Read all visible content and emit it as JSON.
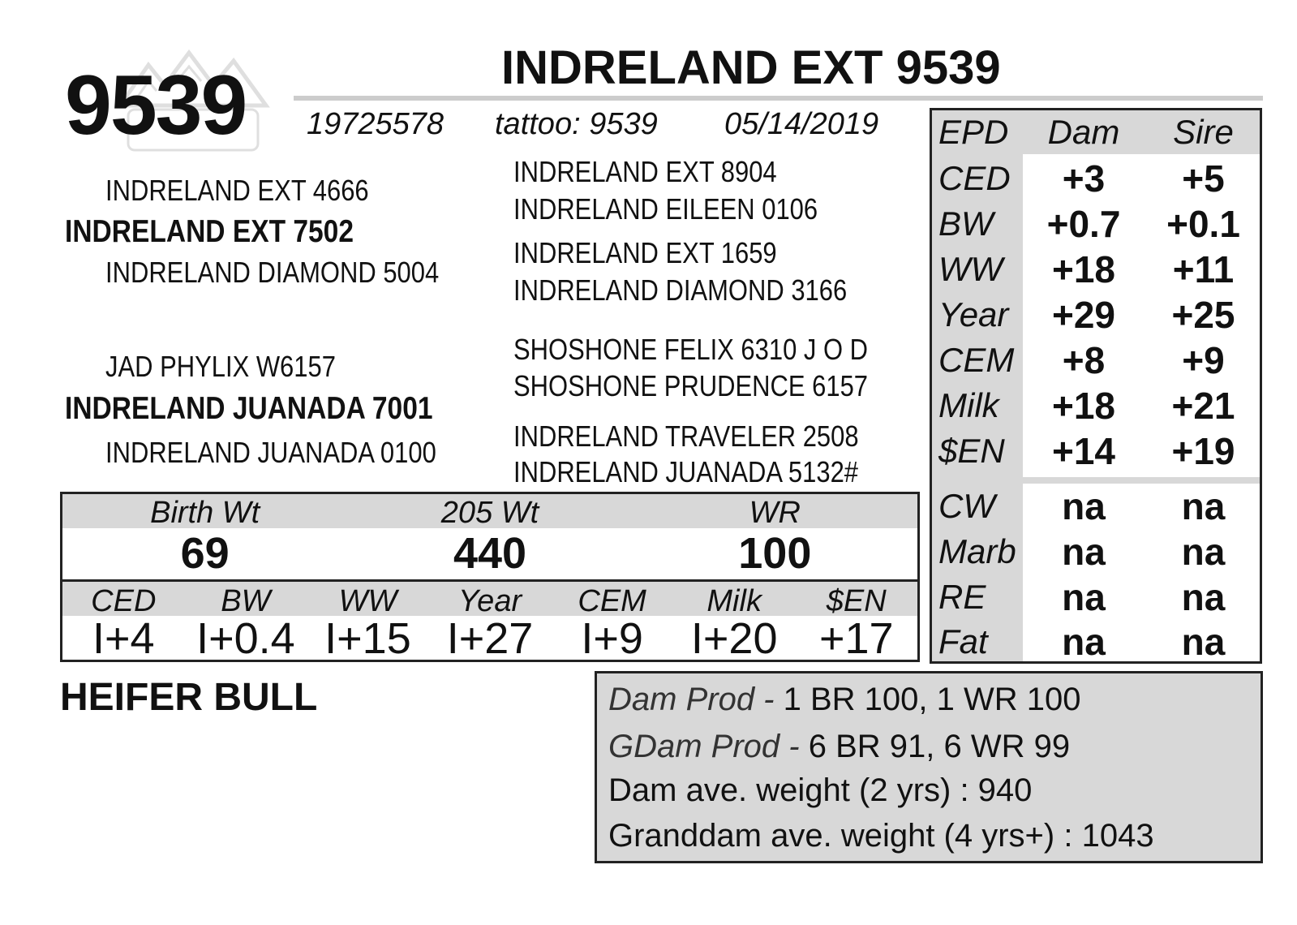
{
  "header": {
    "lot_number": "9539",
    "animal_name": "INDRELAND EXT 9539",
    "registration": "19725578",
    "tattoo": "tattoo: 9539",
    "birth_date": "05/14/2019"
  },
  "pedigree": {
    "sire": "INDRELAND EXT 7502",
    "sire_sire": "INDRELAND EXT 4666",
    "sire_dam": "INDRELAND DIAMOND 5004",
    "dam": "INDRELAND JUANADA 7001",
    "dam_sire": "JAD PHYLIX W6157",
    "dam_dam": "INDRELAND JUANADA 0100",
    "gg": [
      "INDRELAND EXT 8904",
      "INDRELAND EILEEN 0106",
      "INDRELAND EXT 1659",
      "INDRELAND DIAMOND 3166",
      "SHOSHONE FELIX 6310 J O D",
      "SHOSHONE PRUDENCE 6157",
      "INDRELAND TRAVELER 2508",
      "INDRELAND JUANADA 5132#"
    ]
  },
  "performance": {
    "headers": [
      "Birth Wt",
      "205 Wt",
      "WR"
    ],
    "values": [
      "69",
      "440",
      "100"
    ],
    "epd_headers": [
      "CED",
      "BW",
      "WW",
      "Year",
      "CEM",
      "Milk",
      "$EN"
    ],
    "epd_values": [
      "I+4",
      "I+0.4",
      "I+15",
      "I+27",
      "I+9",
      "I+20",
      "+17"
    ]
  },
  "epd_table": {
    "headers": [
      "EPD",
      "Dam",
      "Sire"
    ],
    "rows": [
      {
        "label": "CED",
        "dam": "+3",
        "sire": "+5"
      },
      {
        "label": "BW",
        "dam": "+0.7",
        "sire": "+0.1"
      },
      {
        "label": "WW",
        "dam": "+18",
        "sire": "+11"
      },
      {
        "label": "Year",
        "dam": "+29",
        "sire": "+25"
      },
      {
        "label": "CEM",
        "dam": "+8",
        "sire": "+9"
      },
      {
        "label": "Milk",
        "dam": "+18",
        "sire": "+21"
      },
      {
        "label": "$EN",
        "dam": "+14",
        "sire": "+19"
      },
      {
        "label": "CW",
        "dam": "na",
        "sire": "na"
      },
      {
        "label": "Marb",
        "dam": "na",
        "sire": "na"
      },
      {
        "label": "RE",
        "dam": "na",
        "sire": "na"
      },
      {
        "label": "Fat",
        "dam": "na",
        "sire": "na"
      }
    ]
  },
  "remarks": "HEIFER BULL",
  "production": {
    "dam_prod_label": "Dam Prod -",
    "dam_prod_value": "1 BR 100, 1 WR 100",
    "gdam_prod_label": "GDam Prod -",
    "gdam_prod_value": "6 BR 91, 6 WR 99",
    "dam_avg_weight": "Dam ave. weight (2 yrs) : 940",
    "granddam_avg_weight": "Granddam ave. weight (4 yrs+) : 1043"
  }
}
